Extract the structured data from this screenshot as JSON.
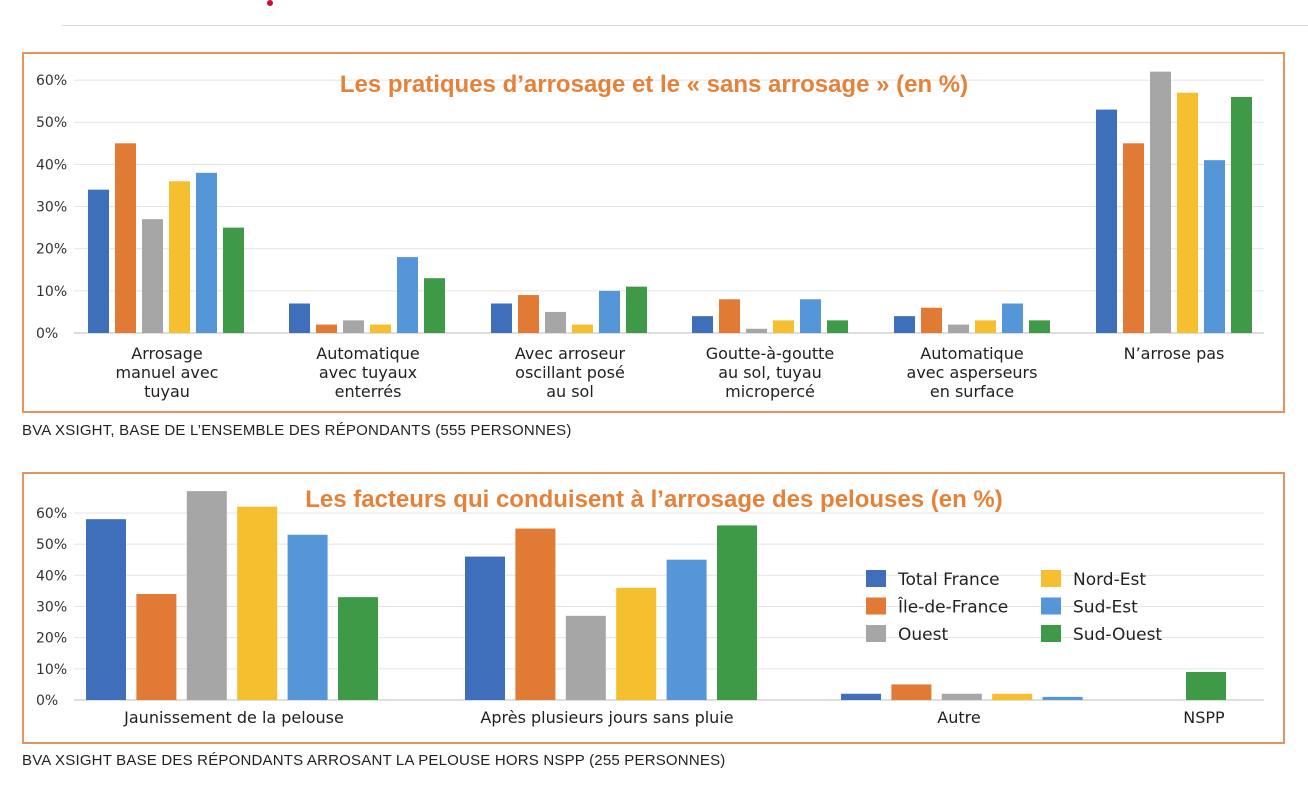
{
  "header": {
    "accent_color": "#c8102e"
  },
  "colors": {
    "Total France": "#3f6fba",
    "Île-de-France": "#e07a34",
    "Ouest": "#a6a6a6",
    "Nord-Est": "#f6bf2f",
    "Sud-Est": "#5596d8",
    "Sud-Ouest": "#3e9a47",
    "title": "#e6813a",
    "frame": "#e7935c"
  },
  "chart_data": [
    {
      "type": "bar",
      "title": "Les pratiques d’arrosage et le « sans arrosage » (en %)",
      "ylim": [
        0,
        65
      ],
      "yticks": [
        "0%",
        "10%",
        "20%",
        "30%",
        "40%",
        "50%",
        "60%"
      ],
      "categories": [
        [
          "Arrosage",
          "manuel avec",
          "tuyau"
        ],
        [
          "Automatique",
          "avec tuyaux",
          "enterrés"
        ],
        [
          "Avec arroseur",
          "oscillant posé",
          "au sol"
        ],
        [
          "Goutte-à-goutte",
          "au sol, tuyau",
          "micropercé"
        ],
        [
          "Automatique",
          "avec asperseurs",
          "en surface"
        ],
        [
          "N’arrose pas"
        ]
      ],
      "series": [
        {
          "name": "Total France",
          "values": [
            34,
            7,
            7,
            4,
            4,
            53
          ]
        },
        {
          "name": "Île-de-France",
          "values": [
            45,
            2,
            9,
            8,
            6,
            45
          ]
        },
        {
          "name": "Ouest",
          "values": [
            27,
            3,
            5,
            1,
            2,
            62
          ]
        },
        {
          "name": "Nord-Est",
          "values": [
            36,
            2,
            2,
            3,
            3,
            57
          ]
        },
        {
          "name": "Sud-Est",
          "values": [
            38,
            18,
            10,
            8,
            7,
            41
          ]
        },
        {
          "name": "Sud-Ouest",
          "values": [
            25,
            13,
            11,
            3,
            3,
            56
          ]
        }
      ],
      "grid": true,
      "source": "BVA XSIGHT, BASE DE L’ENSEMBLE DES RÉPONDANTS (555 PERSONNES)"
    },
    {
      "type": "bar",
      "title": "Les facteurs qui conduisent à l’arrosage des pelouses (en %)",
      "ylim": [
        0,
        68
      ],
      "yticks": [
        "0%",
        "10%",
        "20%",
        "30%",
        "40%",
        "50%",
        "60%"
      ],
      "categories": [
        [
          "Jaunissement de la pelouse"
        ],
        [
          "Après plusieurs jours sans pluie"
        ],
        [
          "Autre"
        ],
        [
          "NSPP"
        ]
      ],
      "series": [
        {
          "name": "Total France",
          "values": [
            58,
            46,
            2,
            null
          ]
        },
        {
          "name": "Île-de-France",
          "values": [
            34,
            55,
            5,
            null
          ]
        },
        {
          "name": "Ouest",
          "values": [
            67,
            27,
            2,
            null
          ]
        },
        {
          "name": "Nord-Est",
          "values": [
            62,
            36,
            2,
            null
          ]
        },
        {
          "name": "Sud-Est",
          "values": [
            53,
            45,
            1,
            null
          ]
        },
        {
          "name": "Sud-Ouest",
          "values": [
            33,
            56,
            null,
            9
          ]
        }
      ],
      "legend": {
        "placement": "right",
        "entries": [
          "Total France",
          "Île-de-France",
          "Ouest",
          "Nord-Est",
          "Sud-Est",
          "Sud-Ouest"
        ]
      },
      "grid": true,
      "source": "BVA XSIGHT BASE DES RÉPONDANTS ARROSANT LA PELOUSE HORS NSPP (255 PERSONNES)"
    }
  ]
}
